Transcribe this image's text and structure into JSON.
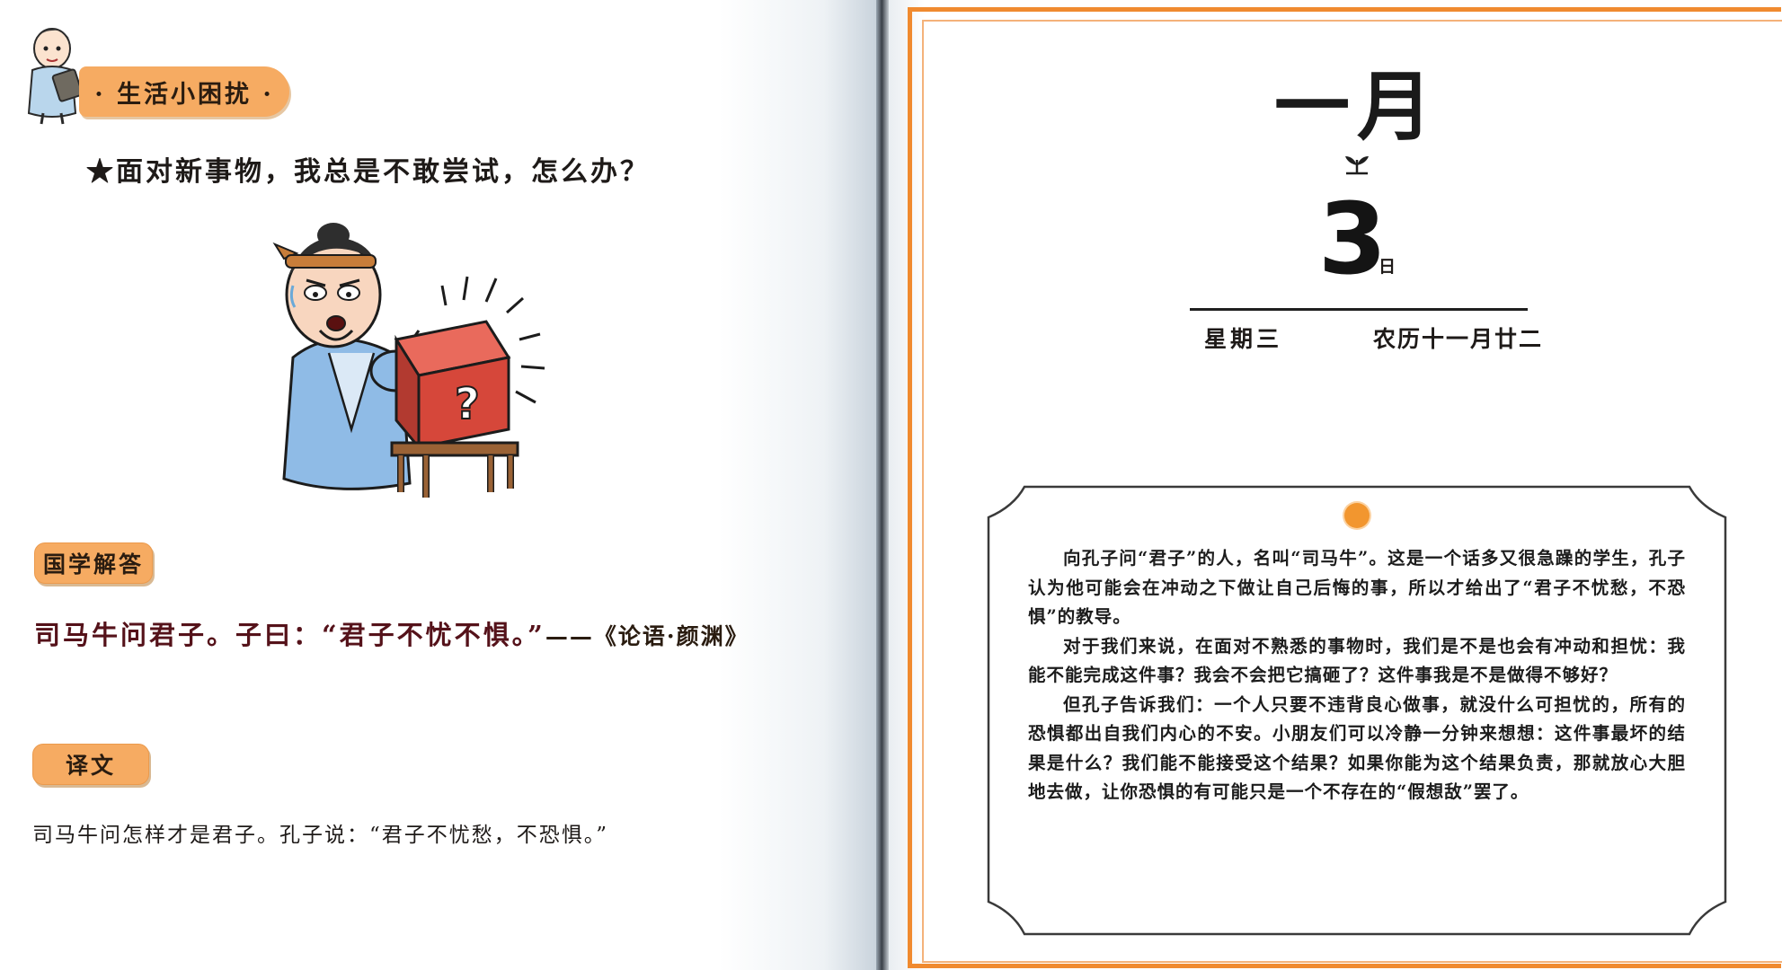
{
  "left_page": {
    "banner_label": "· 生活小困扰 ·",
    "question": "★面对新事物，我总是不敢尝试，怎么办？",
    "section_guoxue_label": "国学解答",
    "quote_text": "司马牛问君子。子曰：“君子不忧不惧。”",
    "quote_source": "——《论语·颜渊》",
    "section_translation_label": "译文",
    "translation_text": "司马牛问怎样才是君子。孔子说：“君子不忧愁，不恐惧。”"
  },
  "right_page": {
    "month": "一月",
    "day": "3",
    "day_unit": "日",
    "weekday": "星期三",
    "lunar_date": "农历十一月廿二",
    "paragraphs": [
      "向孔子问“君子”的人，名叫“司马牛”。这是一个话多又很急躁的学生，孔子认为他可能会在冲动之下做让自己后悔的事，所以才给出了“君子不忧愁，不恐惧”的教导。",
      "对于我们来说，在面对不熟悉的事物时，我们是不是也会有冲动和担忧：我能不能完成这件事？我会不会把它搞砸了？这件事我是不是做得不够好？",
      "但孔子告诉我们：一个人只要不违背良心做事，就没什么可担忧的，所有的恐惧都出自我们内心的不安。小朋友们可以冷静一分钟来想想：这件事最坏的结果是什么？我们能不能接受这个结果？如果你能为这个结果负责，那就放心大胆地去做，让你恐惧的有可能只是一个不存在的“假想敌”罢了。"
    ]
  },
  "colors": {
    "accent_orange": "#f6ab62",
    "frame_orange": "#f08a2f",
    "quote_red": "#55121a"
  },
  "icons": [
    "scholar-mascot-icon",
    "worried-scholar-illustration",
    "sprout-icon",
    "orange-dot"
  ]
}
